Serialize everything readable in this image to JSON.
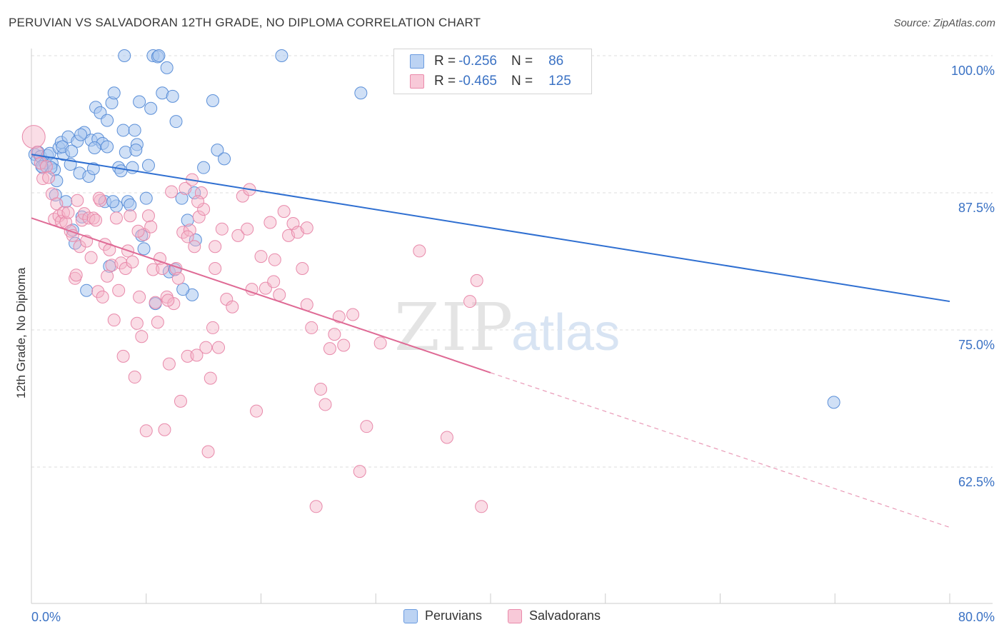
{
  "title": "PERUVIAN VS SALVADORAN 12TH GRADE, NO DIPLOMA CORRELATION CHART",
  "source": "Source: ZipAtlas.com",
  "legend": {
    "row1": {
      "r_label": "R =",
      "r_value": "-0.256",
      "n_label": "N =",
      "n_value": "86"
    },
    "row2": {
      "r_label": "R =",
      "r_value": "-0.465",
      "n_label": "N =",
      "n_value": "125"
    }
  },
  "bottom_legend": {
    "peruvians": "Peruvians",
    "salvadorans": "Salvadorans"
  },
  "colors": {
    "blue_fill": "#a9c6ef",
    "blue_line": "#2f6fd1",
    "pink_fill": "#f5b3c8",
    "pink_line": "#df6a95",
    "tick_blue": "#3b72c4"
  },
  "chart_data": {
    "type": "scatter",
    "xlabel": "",
    "ylabel": "12th Grade, No Diploma",
    "x_ticks": [
      "0.0%",
      "80.0%"
    ],
    "y_ticks": [
      "100.0%",
      "87.5%",
      "75.0%",
      "62.5%"
    ],
    "xlim": [
      0,
      80
    ],
    "ylim": [
      50,
      100
    ],
    "watermark": "ZIPatlas",
    "series": [
      {
        "name": "Peruvians",
        "trend": {
          "x0": 0,
          "y0": 91.0,
          "x1": 80,
          "y1": 77.6
        },
        "points": [
          [
            0.3,
            91
          ],
          [
            0.5,
            90.5
          ],
          [
            0.6,
            91.2
          ],
          [
            0.8,
            90.8
          ],
          [
            1.0,
            89.8
          ],
          [
            1.2,
            90.2
          ],
          [
            1.4,
            90.9
          ],
          [
            1.6,
            91.1
          ],
          [
            1.8,
            90.2
          ],
          [
            2.0,
            89.6
          ],
          [
            2.2,
            88.6
          ],
          [
            2.4,
            91.6
          ],
          [
            2.6,
            92.1
          ],
          [
            2.8,
            91.0
          ],
          [
            3.0,
            86.7
          ],
          [
            3.2,
            92.6
          ],
          [
            3.4,
            90.1
          ],
          [
            3.6,
            84.1
          ],
          [
            3.8,
            82.9
          ],
          [
            4.0,
            92.2
          ],
          [
            4.2,
            89.3
          ],
          [
            4.4,
            85.3
          ],
          [
            4.6,
            93.0
          ],
          [
            4.8,
            78.6
          ],
          [
            5.0,
            89.0
          ],
          [
            5.2,
            92.3
          ],
          [
            5.4,
            89.7
          ],
          [
            5.6,
            95.3
          ],
          [
            5.8,
            92.4
          ],
          [
            6.0,
            94.8
          ],
          [
            6.2,
            92.0
          ],
          [
            6.4,
            86.7
          ],
          [
            6.6,
            91.7
          ],
          [
            6.8,
            80.8
          ],
          [
            7.0,
            95.7
          ],
          [
            7.2,
            96.6
          ],
          [
            7.4,
            86.3
          ],
          [
            7.6,
            89.8
          ],
          [
            7.8,
            89.5
          ],
          [
            8.0,
            93.2
          ],
          [
            8.2,
            91.2
          ],
          [
            8.4,
            86.7
          ],
          [
            8.6,
            86.4
          ],
          [
            8.8,
            89.8
          ],
          [
            9.0,
            93.2
          ],
          [
            9.2,
            91.9
          ],
          [
            9.4,
            95.8
          ],
          [
            9.6,
            83.6
          ],
          [
            9.8,
            82.4
          ],
          [
            10.0,
            87.0
          ],
          [
            10.2,
            90.0
          ],
          [
            10.4,
            95.2
          ],
          [
            10.6,
            100
          ],
          [
            10.8,
            77.4
          ],
          [
            11.0,
            99.9
          ],
          [
            11.4,
            96.6
          ],
          [
            11.8,
            98.9
          ],
          [
            12.0,
            80.3
          ],
          [
            12.3,
            96.3
          ],
          [
            12.6,
            94.0
          ],
          [
            13.1,
            87.0
          ],
          [
            13.6,
            85.0
          ],
          [
            14.0,
            78.2
          ],
          [
            14.3,
            83.2
          ],
          [
            15.0,
            89.8
          ],
          [
            15.8,
            95.9
          ],
          [
            16.2,
            91.4
          ],
          [
            16.8,
            90.6
          ],
          [
            14.2,
            87.5
          ],
          [
            8.1,
            100
          ],
          [
            11.1,
            100
          ],
          [
            21.8,
            100
          ],
          [
            28.7,
            96.6
          ],
          [
            69.9,
            68.4
          ],
          [
            4.3,
            92.8
          ],
          [
            1.7,
            89.8
          ],
          [
            2.7,
            91.7
          ],
          [
            5.5,
            91.6
          ],
          [
            6.6,
            94.1
          ],
          [
            9.1,
            91.4
          ],
          [
            3.5,
            91.3
          ],
          [
            0.9,
            89.9
          ],
          [
            2.1,
            87.3
          ],
          [
            7.1,
            86.7
          ],
          [
            12.5,
            80.5
          ],
          [
            13.2,
            78.7
          ]
        ]
      },
      {
        "name": "Salvadorans",
        "trend": {
          "x0": 0,
          "y0": 85.2,
          "x1": 40,
          "y1": 71.1,
          "dash_x1": 80,
          "dash_y1": 57.0
        },
        "points": [
          [
            0.2,
            92.6
          ],
          [
            0.5,
            91.2
          ],
          [
            0.8,
            90.2
          ],
          [
            1.0,
            88.8
          ],
          [
            1.3,
            89.9
          ],
          [
            1.5,
            88.9
          ],
          [
            1.8,
            87.4
          ],
          [
            2.0,
            85.1
          ],
          [
            2.2,
            86.5
          ],
          [
            2.4,
            85.4
          ],
          [
            2.6,
            84.9
          ],
          [
            2.8,
            85.7
          ],
          [
            3.0,
            84.8
          ],
          [
            3.2,
            85.7
          ],
          [
            3.4,
            84.0
          ],
          [
            3.6,
            83.6
          ],
          [
            3.8,
            79.7
          ],
          [
            4.0,
            86.8
          ],
          [
            4.2,
            82.6
          ],
          [
            4.4,
            85.0
          ],
          [
            4.6,
            85.6
          ],
          [
            4.8,
            83.1
          ],
          [
            5.0,
            85.2
          ],
          [
            5.2,
            81.6
          ],
          [
            5.4,
            85.2
          ],
          [
            5.6,
            85.0
          ],
          [
            5.8,
            78.5
          ],
          [
            6.0,
            86.8
          ],
          [
            6.2,
            78.0
          ],
          [
            6.4,
            82.8
          ],
          [
            6.6,
            79.9
          ],
          [
            6.8,
            82.3
          ],
          [
            7.0,
            80.9
          ],
          [
            7.2,
            75.9
          ],
          [
            7.4,
            85.2
          ],
          [
            7.6,
            78.6
          ],
          [
            7.8,
            81.1
          ],
          [
            8.0,
            72.6
          ],
          [
            8.2,
            80.6
          ],
          [
            8.4,
            82.2
          ],
          [
            8.6,
            85.4
          ],
          [
            8.8,
            81.2
          ],
          [
            9.0,
            70.7
          ],
          [
            9.2,
            75.6
          ],
          [
            9.4,
            78.0
          ],
          [
            9.6,
            74.4
          ],
          [
            9.8,
            83.7
          ],
          [
            10.0,
            65.8
          ],
          [
            10.2,
            85.4
          ],
          [
            10.4,
            84.4
          ],
          [
            10.6,
            80.5
          ],
          [
            10.8,
            77.5
          ],
          [
            11.0,
            75.7
          ],
          [
            11.2,
            81.5
          ],
          [
            11.4,
            80.6
          ],
          [
            11.6,
            65.9
          ],
          [
            11.8,
            78.0
          ],
          [
            12.0,
            71.9
          ],
          [
            12.2,
            87.6
          ],
          [
            12.4,
            77.4
          ],
          [
            12.6,
            80.6
          ],
          [
            12.8,
            79.7
          ],
          [
            13.0,
            68.5
          ],
          [
            13.2,
            83.9
          ],
          [
            13.4,
            87.9
          ],
          [
            13.6,
            72.6
          ],
          [
            13.8,
            84.1
          ],
          [
            14.0,
            88.7
          ],
          [
            14.2,
            82.6
          ],
          [
            14.4,
            72.7
          ],
          [
            14.6,
            85.3
          ],
          [
            14.8,
            87.5
          ],
          [
            15.0,
            86.0
          ],
          [
            15.2,
            73.4
          ],
          [
            15.4,
            63.9
          ],
          [
            15.6,
            70.6
          ],
          [
            15.8,
            75.2
          ],
          [
            16.0,
            82.6
          ],
          [
            16.3,
            73.4
          ],
          [
            16.6,
            84.2
          ],
          [
            17.0,
            77.8
          ],
          [
            17.5,
            77.1
          ],
          [
            18.0,
            83.6
          ],
          [
            18.4,
            87.2
          ],
          [
            18.8,
            84.2
          ],
          [
            19.2,
            78.7
          ],
          [
            19.6,
            67.6
          ],
          [
            20.0,
            81.7
          ],
          [
            20.4,
            78.8
          ],
          [
            20.8,
            84.8
          ],
          [
            21.2,
            81.4
          ],
          [
            21.6,
            78.2
          ],
          [
            22.0,
            85.8
          ],
          [
            22.4,
            83.6
          ],
          [
            22.8,
            84.7
          ],
          [
            23.2,
            83.9
          ],
          [
            23.6,
            80.6
          ],
          [
            24.0,
            77.3
          ],
          [
            24.4,
            75.2
          ],
          [
            24.8,
            58.9
          ],
          [
            25.2,
            69.6
          ],
          [
            25.6,
            68.2
          ],
          [
            26.0,
            73.3
          ],
          [
            26.4,
            74.6
          ],
          [
            26.8,
            76.2
          ],
          [
            27.2,
            73.6
          ],
          [
            28.0,
            76.4
          ],
          [
            28.6,
            62.1
          ],
          [
            29.2,
            66.2
          ],
          [
            30.4,
            73.8
          ],
          [
            33.8,
            82.2
          ],
          [
            36.2,
            65.2
          ],
          [
            38.2,
            77.6
          ],
          [
            38.8,
            79.5
          ],
          [
            39.2,
            58.9
          ],
          [
            24.0,
            84.3
          ],
          [
            19.0,
            87.8
          ],
          [
            13.6,
            83.5
          ],
          [
            5.9,
            87.0
          ],
          [
            11.9,
            77.7
          ],
          [
            9.3,
            84.0
          ],
          [
            21.1,
            79.4
          ],
          [
            16.0,
            80.6
          ],
          [
            14.5,
            86.7
          ],
          [
            3.9,
            80.0
          ]
        ]
      }
    ]
  }
}
